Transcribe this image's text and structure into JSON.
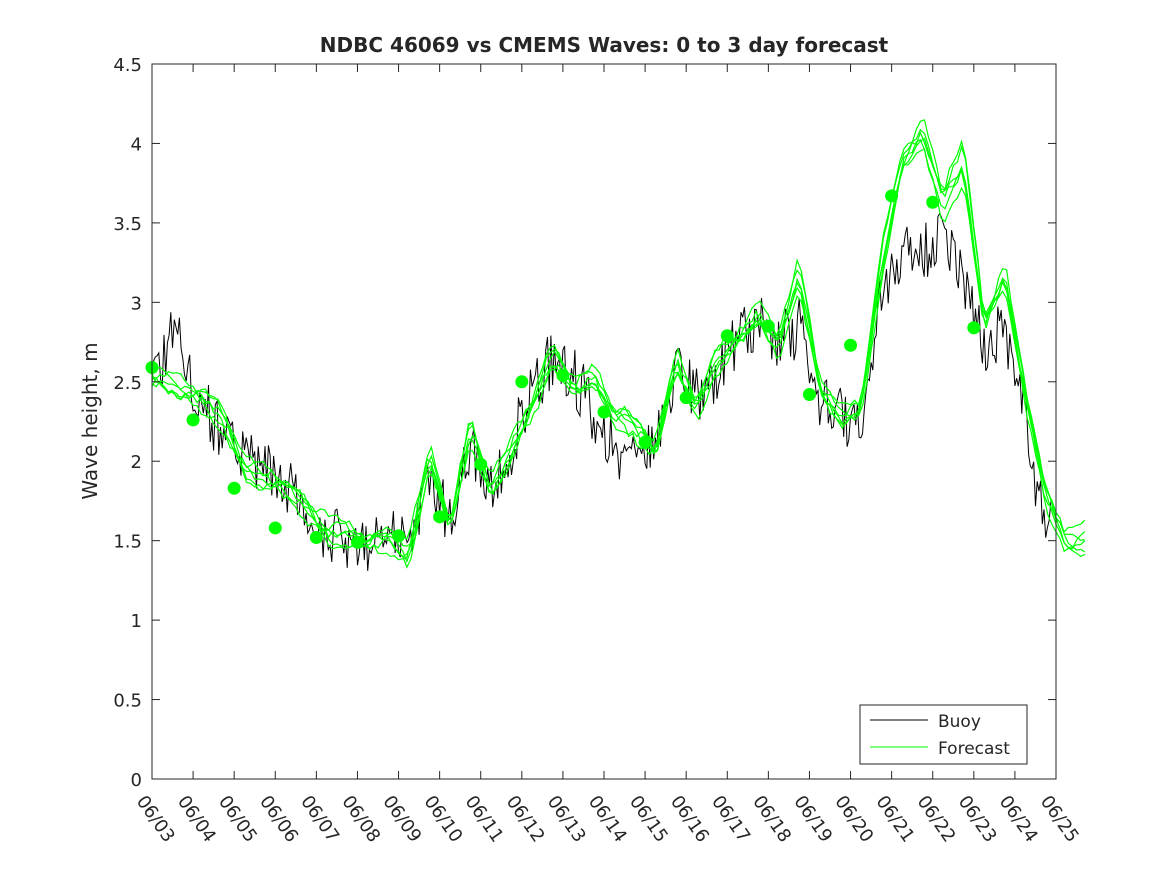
{
  "chart_data": {
    "type": "line",
    "title": "NDBC 46069 vs CMEMS Waves: 0 to 3 day forecast",
    "ylabel": "Wave height, m",
    "xlabel": "",
    "ylim": [
      0,
      4.5
    ],
    "yticks": [
      0,
      0.5,
      1,
      1.5,
      2,
      2.5,
      3,
      3.5,
      4,
      4.5
    ],
    "ytick_labels": [
      "0",
      "0.5",
      "1",
      "1.5",
      "2",
      "2.5",
      "3",
      "3.5",
      "4",
      "4.5"
    ],
    "xlim": [
      "06/03",
      "06/25"
    ],
    "xtick_labels": [
      "06/03",
      "06/04",
      "06/05",
      "06/06",
      "06/07",
      "06/08",
      "06/09",
      "06/10",
      "06/11",
      "06/12",
      "06/13",
      "06/14",
      "06/15",
      "06/16",
      "06/17",
      "06/18",
      "06/19",
      "06/20",
      "06/21",
      "06/22",
      "06/23",
      "06/24",
      "06/25"
    ],
    "legend": {
      "position": "bottom-right",
      "entries": [
        "Buoy",
        "Forecast"
      ]
    },
    "colors": {
      "buoy": "#000000",
      "forecast": "#00ff00"
    },
    "buoy_anchors": [
      [
        "06/03",
        2.6
      ],
      [
        "06/03",
        2.9
      ],
      [
        "06/03",
        2.5
      ],
      [
        "06/04",
        2.35
      ],
      [
        "06/04",
        2.2
      ],
      [
        "06/04",
        2.15
      ],
      [
        "06/05",
        2.0
      ],
      [
        "06/05",
        1.95
      ],
      [
        "06/06",
        1.85
      ],
      [
        "06/06",
        1.75
      ],
      [
        "06/07",
        1.55
      ],
      [
        "06/07",
        1.5
      ],
      [
        "06/08",
        1.45
      ],
      [
        "06/08",
        1.5
      ],
      [
        "06/09",
        1.5
      ],
      [
        "06/09",
        1.95
      ],
      [
        "06/10",
        1.6
      ],
      [
        "06/10",
        2.1
      ],
      [
        "06/11",
        1.85
      ],
      [
        "06/11",
        2.1
      ],
      [
        "06/12",
        2.45
      ],
      [
        "06/12",
        2.65
      ],
      [
        "06/13",
        2.55
      ],
      [
        "06/13",
        2.3
      ],
      [
        "06/14",
        2.1
      ],
      [
        "06/14",
        2.0
      ],
      [
        "06/15",
        2.1
      ],
      [
        "06/15",
        2.6
      ],
      [
        "06/16",
        2.4
      ],
      [
        "06/16",
        2.55
      ],
      [
        "06/17",
        2.75
      ],
      [
        "06/17",
        2.9
      ],
      [
        "06/18",
        2.75
      ],
      [
        "06/18",
        2.85
      ],
      [
        "06/19",
        2.4
      ],
      [
        "06/19",
        2.3
      ],
      [
        "06/20",
        2.15
      ],
      [
        "06/20",
        3.05
      ],
      [
        "06/21",
        3.35
      ],
      [
        "06/21",
        3.3
      ],
      [
        "06/22",
        3.5
      ],
      [
        "06/22",
        3.1
      ],
      [
        "06/23",
        2.7
      ],
      [
        "06/23",
        2.85
      ],
      [
        "06/24",
        2.35
      ],
      [
        "06/24",
        1.7
      ],
      [
        "06/24",
        1.6
      ]
    ],
    "forecast_anchors": [
      [
        "06/03",
        2.55
      ],
      [
        "06/03",
        2.45
      ],
      [
        "06/04",
        2.35
      ],
      [
        "06/04",
        2.25
      ],
      [
        "06/05",
        2.0
      ],
      [
        "06/05",
        1.9
      ],
      [
        "06/06",
        1.8
      ],
      [
        "06/06",
        1.7
      ],
      [
        "06/07",
        1.6
      ],
      [
        "06/07",
        1.55
      ],
      [
        "06/08",
        1.45
      ],
      [
        "06/08",
        1.5
      ],
      [
        "06/09",
        1.45
      ],
      [
        "06/09",
        2.05
      ],
      [
        "06/10",
        1.55
      ],
      [
        "06/10",
        2.2
      ],
      [
        "06/11",
        1.85
      ],
      [
        "06/11",
        2.1
      ],
      [
        "06/12",
        2.3
      ],
      [
        "06/12",
        2.65
      ],
      [
        "06/13",
        2.5
      ],
      [
        "06/13",
        2.55
      ],
      [
        "06/14",
        2.25
      ],
      [
        "06/14",
        2.2
      ],
      [
        "06/15",
        2.1
      ],
      [
        "06/15",
        2.65
      ],
      [
        "06/16",
        2.3
      ],
      [
        "06/16",
        2.6
      ],
      [
        "06/17",
        2.8
      ],
      [
        "06/17",
        2.95
      ],
      [
        "06/18",
        2.7
      ],
      [
        "06/18",
        3.15
      ],
      [
        "06/19",
        2.5
      ],
      [
        "06/19",
        2.3
      ],
      [
        "06/20",
        2.3
      ],
      [
        "06/20",
        3.2
      ],
      [
        "06/21",
        3.9
      ],
      [
        "06/21",
        4.1
      ],
      [
        "06/22",
        3.6
      ],
      [
        "06/22",
        3.85
      ],
      [
        "06/23",
        2.9
      ],
      [
        "06/23",
        3.2
      ],
      [
        "06/24",
        2.4
      ],
      [
        "06/24",
        1.75
      ],
      [
        "06/25",
        1.5
      ],
      [
        "06/25",
        1.55
      ]
    ],
    "forecast_markers": [
      [
        "06/03",
        2.59
      ],
      [
        "06/04",
        2.26
      ],
      [
        "06/05",
        1.83
      ],
      [
        "06/06",
        1.58
      ],
      [
        "06/07",
        1.52
      ],
      [
        "06/08",
        1.49
      ],
      [
        "06/09",
        1.53
      ],
      [
        "06/10",
        1.65
      ],
      [
        "06/11",
        1.98
      ],
      [
        "06/12",
        2.5
      ],
      [
        "06/13",
        2.54
      ],
      [
        "06/14",
        2.31
      ],
      [
        "06/15",
        2.12
      ],
      [
        "06/16",
        2.4
      ],
      [
        "06/17",
        2.79
      ],
      [
        "06/18",
        2.85
      ],
      [
        "06/19",
        2.42
      ],
      [
        "06/20",
        2.73
      ],
      [
        "06/21",
        3.67
      ],
      [
        "06/22",
        3.63
      ],
      [
        "06/23",
        2.84
      ]
    ]
  }
}
